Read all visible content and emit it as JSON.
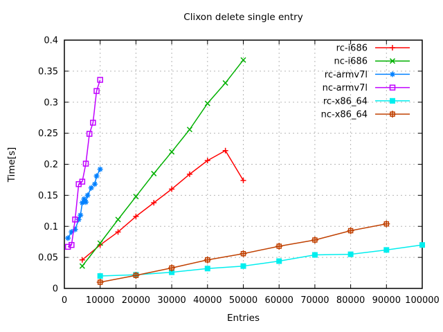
{
  "chart_data": {
    "type": "line",
    "title": "Clixon delete single entry",
    "xlabel": "Entries",
    "ylabel": "Time[s]",
    "xlim": [
      0,
      100000
    ],
    "ylim": [
      0,
      0.4
    ],
    "grid": true,
    "legend_position": "top-right-inside",
    "xticks": [
      0,
      10000,
      20000,
      30000,
      40000,
      50000,
      60000,
      70000,
      80000,
      90000,
      100000
    ],
    "xtick_labels": [
      "0",
      "10000",
      "20000",
      "30000",
      "40000",
      "50000",
      "60000",
      "70000",
      "80000",
      "90000",
      "100000"
    ],
    "yticks": [
      0,
      0.05,
      0.1,
      0.15,
      0.2,
      0.25,
      0.3,
      0.35,
      0.4
    ],
    "ytick_labels": [
      "0",
      "0.05",
      "0.1",
      "0.15",
      "0.2",
      "0.25",
      "0.3",
      "0.35",
      "0.4"
    ],
    "series": [
      {
        "name": "rc-i686",
        "color": "#ff0000",
        "marker": "plus",
        "x": [
          5000,
          10000,
          15000,
          20000,
          25000,
          30000,
          35000,
          40000,
          45000,
          50000
        ],
        "y": [
          0.046,
          0.07,
          0.091,
          0.116,
          0.138,
          0.16,
          0.184,
          0.206,
          0.222,
          0.174
        ]
      },
      {
        "name": "nc-i686",
        "color": "#00b000",
        "marker": "cross",
        "x": [
          5000,
          10000,
          15000,
          20000,
          25000,
          30000,
          35000,
          40000,
          45000,
          50000
        ],
        "y": [
          0.036,
          0.073,
          0.111,
          0.148,
          0.185,
          0.22,
          0.256,
          0.298,
          0.331,
          0.368
        ]
      },
      {
        "name": "rc-armv7l",
        "color": "#0080ff",
        "marker": "asterisk",
        "x": [
          1000,
          2000,
          3000,
          4000,
          4500,
          5000,
          5500,
          6000,
          6500,
          7500,
          8500,
          9000,
          10000
        ],
        "y": [
          0.081,
          0.091,
          0.095,
          0.111,
          0.118,
          0.138,
          0.144,
          0.139,
          0.15,
          0.162,
          0.168,
          0.181,
          0.192
        ]
      },
      {
        "name": "nc-armv7l",
        "color": "#c000ff",
        "marker": "open-square",
        "x": [
          1000,
          2000,
          3000,
          4000,
          5000,
          6000,
          7000,
          8000,
          9000,
          10000
        ],
        "y": [
          0.067,
          0.07,
          0.111,
          0.168,
          0.172,
          0.201,
          0.249,
          0.267,
          0.318,
          0.336
        ]
      },
      {
        "name": "rc-x86_64",
        "color": "#00eeee",
        "marker": "filled-square",
        "x": [
          10000,
          20000,
          30000,
          40000,
          50000,
          60000,
          70000,
          80000,
          90000,
          100000
        ],
        "y": [
          0.02,
          0.022,
          0.026,
          0.032,
          0.036,
          0.044,
          0.054,
          0.055,
          0.062,
          0.07
        ]
      },
      {
        "name": "nc-x86_64",
        "color": "#c04000",
        "marker": "square-plus",
        "x": [
          10000,
          20000,
          30000,
          40000,
          50000,
          60000,
          70000,
          80000,
          90000
        ],
        "y": [
          0.01,
          0.021,
          0.033,
          0.046,
          0.056,
          0.068,
          0.078,
          0.093,
          0.104
        ]
      }
    ]
  }
}
